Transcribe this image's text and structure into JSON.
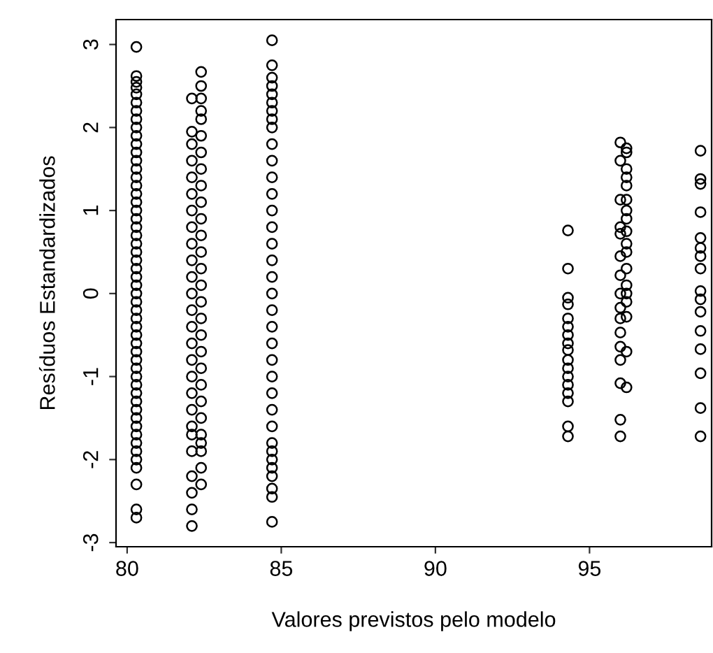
{
  "chart_data": {
    "type": "scatter",
    "xlabel": "Valores previstos pelo modelo",
    "ylabel": "Resíduos Estandardizados",
    "marker": "circle",
    "grid": false,
    "legend": false,
    "xlim": [
      79.64,
      98.96
    ],
    "ylim": [
      -3.05,
      3.3
    ],
    "xticks": [
      80,
      85,
      90,
      95
    ],
    "yticks": [
      -3,
      -2,
      -1,
      0,
      1,
      2,
      3
    ],
    "series": [
      {
        "color": "#000000",
        "x": [
          80.3,
          80.3,
          80.3,
          80.3,
          80.3,
          80.3,
          80.3,
          80.3,
          80.3,
          80.3,
          80.3,
          80.3,
          80.3,
          80.3,
          80.3,
          80.3,
          80.3,
          80.3,
          80.3,
          80.3,
          80.3,
          80.3,
          80.3,
          80.3,
          80.3,
          80.3,
          80.3,
          80.3,
          80.3,
          80.3,
          80.3,
          80.3,
          80.3,
          80.3,
          80.3,
          80.3,
          80.3,
          80.3,
          80.3,
          80.3,
          80.3,
          80.3,
          80.3,
          80.3,
          80.3,
          80.3,
          80.3,
          80.3,
          80.3,
          80.3,
          80.3,
          80.3,
          80.3
        ],
        "values": [
          2.97,
          2.62,
          2.55,
          2.48,
          2.4,
          2.3,
          2.2,
          2.1,
          2.0,
          1.9,
          1.8,
          1.7,
          1.6,
          1.5,
          1.4,
          1.3,
          1.2,
          1.1,
          1.0,
          0.9,
          0.8,
          0.7,
          0.6,
          0.5,
          0.4,
          0.3,
          0.2,
          0.1,
          0.0,
          -0.1,
          -0.2,
          -0.3,
          -0.4,
          -0.5,
          -0.6,
          -0.7,
          -0.8,
          -0.9,
          -1.0,
          -1.1,
          -1.2,
          -1.3,
          -1.4,
          -1.5,
          -1.6,
          -1.7,
          -1.8,
          -1.9,
          -2.0,
          -2.1,
          -2.3,
          -2.6,
          -2.7
        ]
      },
      {
        "color": "#000000",
        "x": [
          82.1,
          82.1,
          82.1,
          82.1,
          82.1,
          82.1,
          82.1,
          82.1,
          82.1,
          82.1,
          82.1,
          82.1,
          82.1,
          82.1,
          82.1,
          82.1,
          82.1,
          82.1,
          82.1,
          82.1,
          82.1,
          82.1,
          82.1,
          82.1,
          82.1,
          82.1
        ],
        "values": [
          2.35,
          1.95,
          1.8,
          1.6,
          1.4,
          1.2,
          1.0,
          0.8,
          0.6,
          0.4,
          0.2,
          0.0,
          -0.2,
          -0.4,
          -0.6,
          -0.8,
          -1.0,
          -1.2,
          -1.4,
          -1.6,
          -1.7,
          -1.9,
          -2.2,
          -2.4,
          -2.6,
          -2.8
        ]
      },
      {
        "color": "#000000",
        "x": [
          82.4,
          82.4,
          82.4,
          82.4,
          82.4,
          82.4,
          82.4,
          82.4,
          82.4,
          82.4,
          82.4,
          82.4,
          82.4,
          82.4,
          82.4,
          82.4,
          82.4,
          82.4,
          82.4,
          82.4,
          82.4,
          82.4,
          82.4,
          82.4,
          82.4,
          82.4,
          82.4,
          82.4
        ],
        "values": [
          2.67,
          2.5,
          2.35,
          2.2,
          2.1,
          1.9,
          1.7,
          1.5,
          1.3,
          1.1,
          0.9,
          0.7,
          0.5,
          0.3,
          0.1,
          -0.1,
          -0.3,
          -0.5,
          -0.7,
          -0.9,
          -1.1,
          -1.3,
          -1.5,
          -1.7,
          -1.8,
          -1.9,
          -2.1,
          -2.3
        ]
      },
      {
        "color": "#000000",
        "x": [
          84.7,
          84.7,
          84.7,
          84.7,
          84.7,
          84.7,
          84.7,
          84.7,
          84.7,
          84.7,
          84.7,
          84.7,
          84.7,
          84.7,
          84.7,
          84.7,
          84.7,
          84.7,
          84.7,
          84.7,
          84.7,
          84.7,
          84.7,
          84.7,
          84.7,
          84.7,
          84.7,
          84.7,
          84.7,
          84.7,
          84.7,
          84.7,
          84.7,
          84.7,
          84.7
        ],
        "values": [
          3.05,
          2.75,
          2.6,
          2.5,
          2.4,
          2.3,
          2.2,
          2.1,
          2.0,
          1.8,
          1.6,
          1.4,
          1.2,
          1.0,
          0.8,
          0.6,
          0.4,
          0.2,
          0.0,
          -0.2,
          -0.4,
          -0.6,
          -0.8,
          -1.0,
          -1.2,
          -1.4,
          -1.6,
          -1.8,
          -1.9,
          -2.0,
          -2.1,
          -2.2,
          -2.35,
          -2.45,
          -2.75
        ]
      },
      {
        "color": "#000000",
        "x": [
          94.3,
          94.3,
          94.3,
          94.3,
          94.3,
          94.3,
          94.3,
          94.3,
          94.3,
          94.3,
          94.3,
          94.3,
          94.3,
          94.3,
          94.3,
          94.3,
          94.3
        ],
        "values": [
          0.76,
          0.3,
          -0.05,
          -0.13,
          -0.3,
          -0.4,
          -0.5,
          -0.6,
          -0.68,
          -0.8,
          -0.9,
          -1.0,
          -1.1,
          -1.2,
          -1.3,
          -1.6,
          -1.72
        ]
      },
      {
        "color": "#000000",
        "x": [
          96.0,
          96.0,
          96.0,
          96.0,
          96.0,
          96.0,
          96.0,
          96.0,
          96.0,
          96.0,
          96.0,
          96.0,
          96.0,
          96.0,
          96.0,
          96.0
        ],
        "values": [
          1.82,
          1.6,
          1.13,
          0.8,
          0.72,
          0.45,
          0.22,
          0.0,
          -0.17,
          -0.3,
          -0.47,
          -0.64,
          -0.8,
          -1.08,
          -1.52,
          -1.72
        ]
      },
      {
        "color": "#000000",
        "x": [
          96.2,
          96.2,
          96.2,
          96.2,
          96.2,
          96.2,
          96.2,
          96.2,
          96.2,
          96.2,
          96.2,
          96.2,
          96.2,
          96.2,
          96.2,
          96.2,
          96.2,
          96.2
        ],
        "values": [
          1.75,
          1.7,
          1.5,
          1.4,
          1.3,
          1.13,
          1.0,
          0.9,
          0.75,
          0.6,
          0.5,
          0.3,
          0.1,
          0.0,
          -0.1,
          -0.28,
          -0.7,
          -1.13
        ]
      },
      {
        "color": "#000000",
        "x": [
          98.6,
          98.6,
          98.6,
          98.6,
          98.6,
          98.6,
          98.6,
          98.6,
          98.6,
          98.6,
          98.6,
          98.6,
          98.6,
          98.6,
          98.6,
          98.6
        ],
        "values": [
          1.72,
          1.38,
          1.32,
          0.98,
          0.67,
          0.55,
          0.45,
          0.3,
          0.03,
          -0.07,
          -0.22,
          -0.45,
          -0.67,
          -0.96,
          -1.38,
          -1.72
        ]
      }
    ]
  }
}
